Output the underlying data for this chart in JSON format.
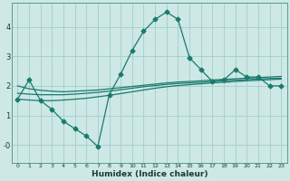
{
  "title": "",
  "xlabel": "Humidex (Indice chaleur)",
  "x": [
    0,
    1,
    2,
    3,
    4,
    5,
    6,
    7,
    8,
    9,
    10,
    11,
    12,
    13,
    14,
    15,
    16,
    17,
    18,
    19,
    20,
    21,
    22,
    23
  ],
  "y_main": [
    1.55,
    2.2,
    1.5,
    1.2,
    0.8,
    0.55,
    0.3,
    -0.05,
    1.7,
    2.4,
    3.2,
    3.85,
    4.25,
    4.5,
    4.25,
    2.95,
    2.55,
    2.15,
    2.2,
    2.55,
    2.3,
    2.3,
    2.0,
    2.0
  ],
  "y_line1": [
    2.0,
    1.9,
    1.85,
    1.82,
    1.8,
    1.82,
    1.84,
    1.86,
    1.9,
    1.94,
    1.98,
    2.02,
    2.06,
    2.1,
    2.13,
    2.15,
    2.17,
    2.2,
    2.22,
    2.24,
    2.26,
    2.28,
    2.3,
    2.32
  ],
  "y_line2": [
    1.75,
    1.72,
    1.7,
    1.7,
    1.7,
    1.72,
    1.75,
    1.78,
    1.82,
    1.87,
    1.92,
    1.97,
    2.01,
    2.05,
    2.08,
    2.1,
    2.12,
    2.15,
    2.17,
    2.19,
    2.21,
    2.23,
    2.25,
    2.26
  ],
  "y_line3": [
    1.55,
    1.52,
    1.5,
    1.5,
    1.52,
    1.55,
    1.58,
    1.63,
    1.68,
    1.74,
    1.8,
    1.86,
    1.92,
    1.97,
    2.01,
    2.04,
    2.07,
    2.1,
    2.12,
    2.15,
    2.17,
    2.19,
    2.21,
    2.23
  ],
  "color_main": "#1a7a6e",
  "color_lines": "#1a7a6e",
  "bg_color": "#cde8e5",
  "grid_color": "#a0d0cc",
  "ylim": [
    -0.6,
    4.8
  ],
  "yticks": [
    0,
    1,
    2,
    3,
    4
  ],
  "ytick_labels": [
    "-0",
    "1",
    "2",
    "3",
    "4"
  ],
  "marker": "D",
  "markersize": 2.5,
  "linewidth": 0.9
}
